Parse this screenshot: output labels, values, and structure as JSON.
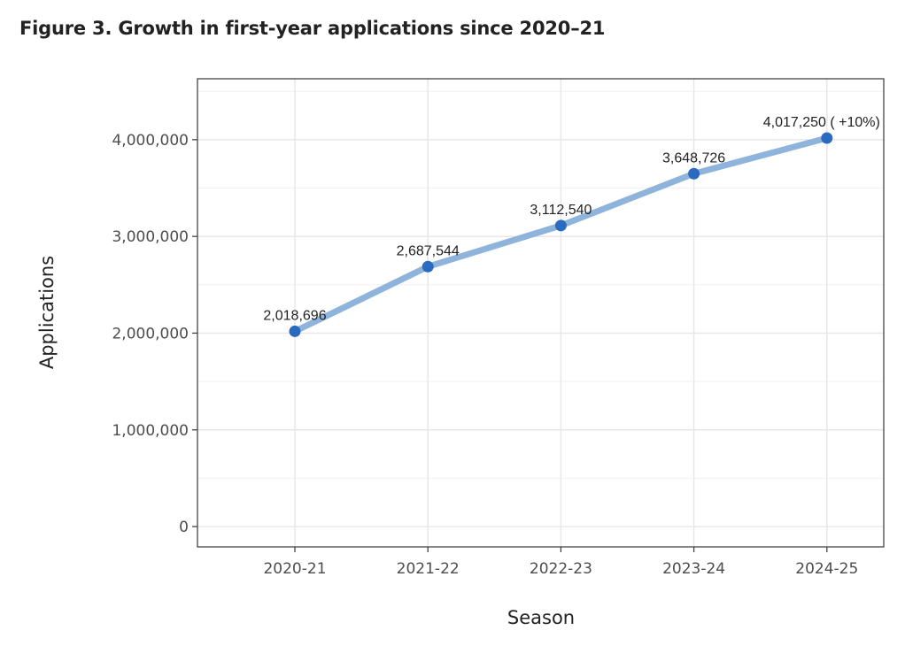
{
  "chart_data": {
    "type": "line",
    "title": "Figure 3. Growth in first-year applications since 2020–21",
    "xlabel": "Season",
    "ylabel": "Applications",
    "categories": [
      "2020-21",
      "2021-22",
      "2022-23",
      "2023-24",
      "2024-25"
    ],
    "values": [
      2018696,
      2687544,
      3112540,
      3648726,
      4017250
    ],
    "data_labels": [
      "2,018,696",
      "2,687,544",
      "3,112,540",
      "3,648,726",
      "4,017,250 ( +10%)"
    ],
    "yticks": [
      0,
      1000000,
      2000000,
      3000000,
      4000000
    ],
    "ytick_labels": [
      "0",
      "1,000,000",
      "2,000,000",
      "3,000,000",
      "4,000,000"
    ],
    "ylim": [
      -210000,
      4630000
    ],
    "grid": true,
    "colors": {
      "line": "#8fb4dc",
      "point": "#2a6bbf"
    }
  }
}
